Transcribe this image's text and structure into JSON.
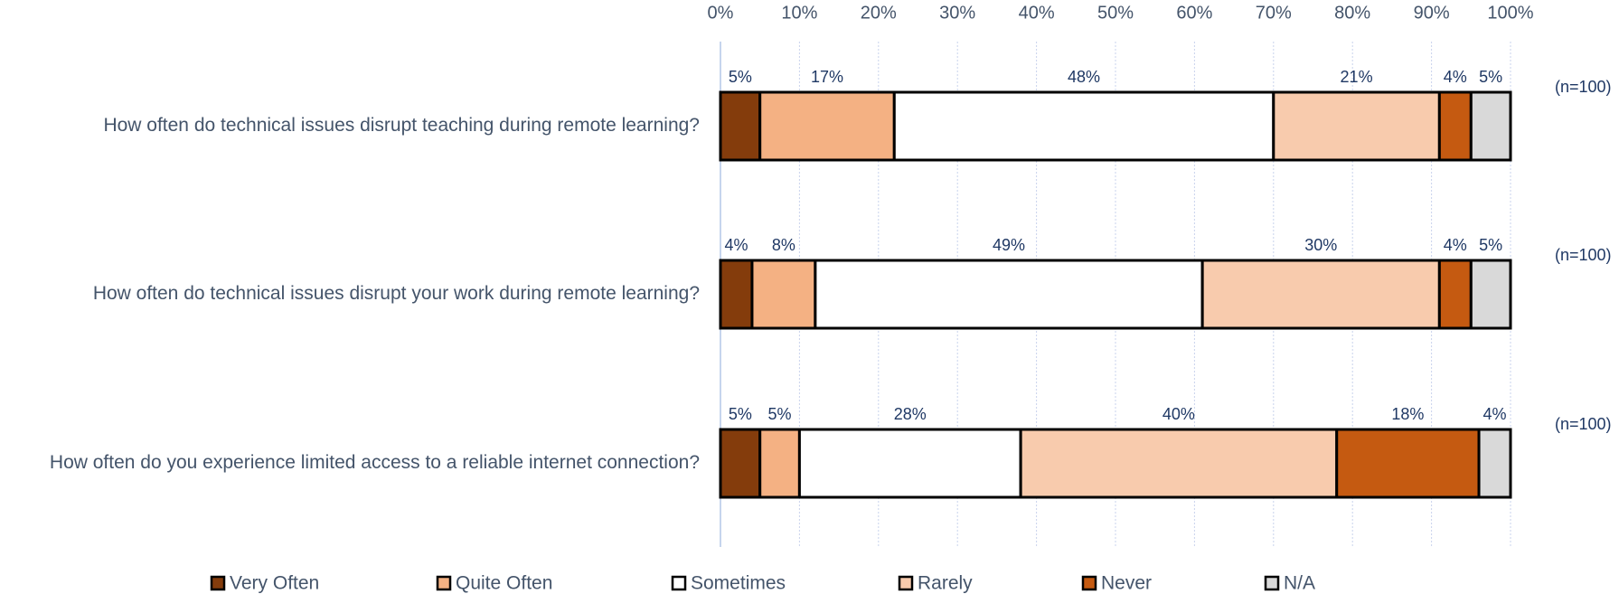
{
  "chart_data": {
    "type": "bar",
    "orientation": "horizontal",
    "stacked": true,
    "categories": [
      "How often do technical issues disrupt teaching during remote learning?",
      "How often do technical issues disrupt your work during remote learning?",
      "How often do you experience limited access to a reliable internet connection?"
    ],
    "series": [
      {
        "name": "Very Often",
        "color": "#843c0c",
        "values": [
          5,
          4,
          5
        ],
        "value_labels": [
          "5%",
          "4%",
          "5%"
        ]
      },
      {
        "name": "Quite Often",
        "color": "#f4b183",
        "values": [
          17,
          8,
          5
        ],
        "value_labels": [
          "17%",
          "8%",
          "5%"
        ]
      },
      {
        "name": "Sometimes",
        "color": "#ffffff",
        "values": [
          48,
          49,
          28
        ],
        "value_labels": [
          "48%",
          "49%",
          "28%"
        ]
      },
      {
        "name": "Rarely",
        "color": "#f8cbad",
        "values": [
          21,
          30,
          40
        ],
        "value_labels": [
          "21%",
          "30%",
          "40%"
        ]
      },
      {
        "name": "Never",
        "color": "#c55a11",
        "values": [
          4,
          4,
          18
        ],
        "value_labels": [
          "4%",
          "4%",
          "18%"
        ]
      },
      {
        "name": "N/A",
        "color": "#d9d9d9",
        "values": [
          5,
          5,
          4
        ],
        "value_labels": [
          "5%",
          "5%",
          "4%"
        ]
      }
    ],
    "annotations": [
      "(n=100)",
      "(n=100)",
      "(n=100)"
    ],
    "xlim": [
      0,
      100
    ],
    "xticks": [
      {
        "value": 0,
        "label": "0%"
      },
      {
        "value": 10,
        "label": "10%"
      },
      {
        "value": 20,
        "label": "20%"
      },
      {
        "value": 30,
        "label": "30%"
      },
      {
        "value": 40,
        "label": "40%"
      },
      {
        "value": 50,
        "label": "50%"
      },
      {
        "value": 60,
        "label": "60%"
      },
      {
        "value": 70,
        "label": "70%"
      },
      {
        "value": 80,
        "label": "80%"
      },
      {
        "value": 90,
        "label": "90%"
      },
      {
        "value": 100,
        "label": "100%"
      }
    ],
    "grid": true,
    "legend": "bottom"
  }
}
